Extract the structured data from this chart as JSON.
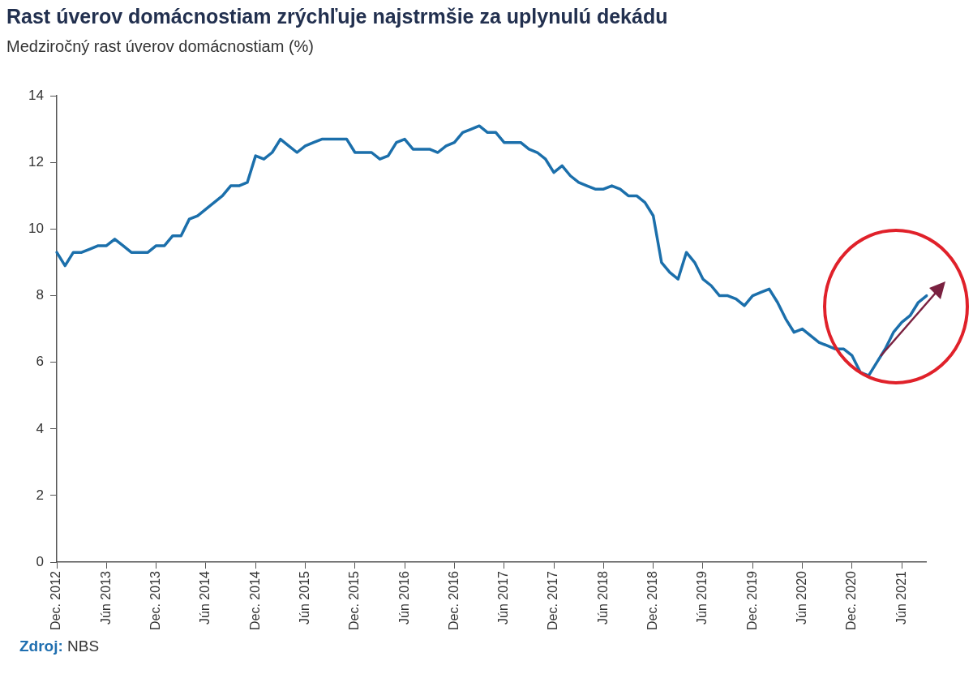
{
  "chart_data": {
    "type": "line",
    "title": "Rast úverov domácnostiam zrýchľuje najstrmšie za uplynulú dekádu",
    "subtitle": "Medziročný rast úverov domácnostiam (%)",
    "categories": [
      "Dec. 2012",
      null,
      null,
      null,
      null,
      null,
      "Jún 2013",
      null,
      null,
      null,
      null,
      null,
      "Dec. 2013",
      null,
      null,
      null,
      null,
      null,
      "Jún 2014",
      null,
      null,
      null,
      null,
      null,
      "Dec. 2014",
      null,
      null,
      null,
      null,
      null,
      "Jún 2015",
      null,
      null,
      null,
      null,
      null,
      "Dec. 2015",
      null,
      null,
      null,
      null,
      null,
      "Jún 2016",
      null,
      null,
      null,
      null,
      null,
      "Dec. 2016",
      null,
      null,
      null,
      null,
      null,
      "Jún 2017",
      null,
      null,
      null,
      null,
      null,
      "Dec. 2017",
      null,
      null,
      null,
      null,
      null,
      "Jún 2018",
      null,
      null,
      null,
      null,
      null,
      "Dec. 2018",
      null,
      null,
      null,
      null,
      null,
      "Jún 2019",
      null,
      null,
      null,
      null,
      null,
      "Dec. 2019",
      null,
      null,
      null,
      null,
      null,
      "Jún 2020",
      null,
      null,
      null,
      null,
      null,
      "Dec. 2020",
      null,
      null,
      null,
      null,
      null,
      "Jún 2021",
      null,
      null,
      null
    ],
    "series": [
      {
        "color": "#1b6fab",
        "values": [
          9.3,
          8.9,
          9.3,
          9.3,
          9.4,
          9.5,
          9.5,
          9.7,
          9.5,
          9.3,
          9.3,
          9.3,
          9.5,
          9.5,
          9.8,
          9.8,
          10.3,
          10.4,
          10.6,
          10.8,
          11.0,
          11.3,
          11.3,
          11.4,
          12.2,
          12.1,
          12.3,
          12.7,
          12.5,
          12.3,
          12.5,
          12.6,
          12.7,
          12.7,
          12.7,
          12.7,
          12.3,
          12.3,
          12.3,
          12.1,
          12.2,
          12.6,
          12.7,
          12.4,
          12.4,
          12.4,
          12.3,
          12.5,
          12.6,
          12.9,
          13.0,
          13.1,
          12.9,
          12.9,
          12.6,
          12.6,
          12.6,
          12.4,
          12.3,
          12.1,
          11.7,
          11.9,
          11.6,
          11.4,
          11.3,
          11.2,
          11.2,
          11.3,
          11.2,
          11.0,
          11.0,
          10.8,
          10.4,
          9.0,
          8.7,
          8.5,
          9.3,
          9.0,
          8.5,
          8.3,
          8.0,
          8.0,
          7.9,
          7.7,
          8.0,
          8.1,
          8.2,
          7.8,
          7.3,
          6.9,
          7.0,
          6.8,
          6.6,
          6.5,
          6.4,
          6.4,
          6.2,
          5.7,
          5.6,
          6.0,
          6.4,
          6.9,
          7.2,
          7.4,
          7.8,
          8.0
        ]
      }
    ],
    "ylim": [
      0,
      14
    ],
    "yticks": [
      0,
      2,
      4,
      6,
      8,
      10,
      12,
      14
    ],
    "grid": false,
    "legend": false,
    "marker": "none",
    "line_style": "solid",
    "annotations": [
      "Zdroj: NBS"
    ]
  }
}
